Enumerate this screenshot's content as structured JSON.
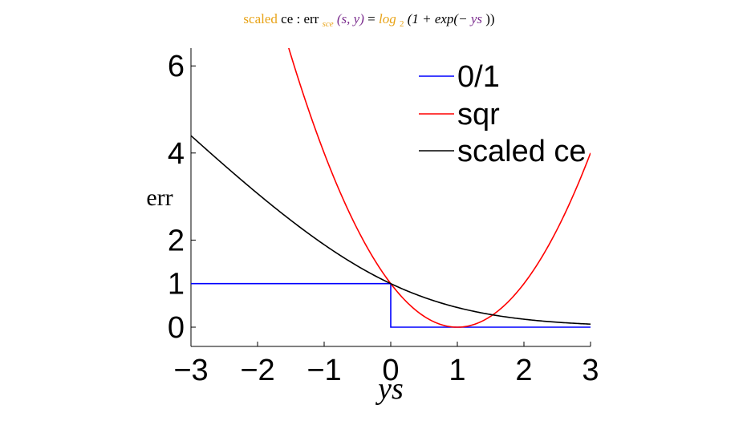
{
  "title": {
    "prefix": "scaled",
    "after_prefix": " ce : err",
    "err_subscript": "sce",
    "args": "(s, y)",
    "equals": " = ",
    "log": "log",
    "log_base": "2",
    "expr_start": "(1 + exp(−",
    "expr_var": "ys",
    "expr_end": "))"
  },
  "colors": {
    "title_orange": "#E8A317",
    "title_purple": "#7B2D8E",
    "zero_one": "#0000FF",
    "sqr": "#FF0000",
    "scaled_ce": "#000000"
  },
  "chart_data": {
    "type": "line",
    "title": "scaled ce : err_sce(s, y) = log_2(1 + exp(−ys))",
    "xlabel": "ys",
    "ylabel": "err",
    "xlim": [
      -3,
      3
    ],
    "ylim": [
      -0.5,
      6.5
    ],
    "x_ticks": [
      -3,
      -2,
      -1,
      0,
      1,
      2,
      3
    ],
    "x_tick_labels": [
      "−3",
      "−2",
      "−1",
      "0",
      "1",
      "2",
      "3"
    ],
    "y_ticks": [
      0,
      1,
      2,
      4,
      6
    ],
    "y_tick_labels": [
      "0",
      "1",
      "2",
      "4",
      "6"
    ],
    "grid": false,
    "legend_position": "top-right",
    "series": [
      {
        "name": "0/1",
        "color": "#0000FF",
        "x": [
          -3,
          0,
          0,
          3
        ],
        "y": [
          1,
          1,
          0,
          0
        ]
      },
      {
        "name": "sqr",
        "color": "#FF0000",
        "function": "(1 - ys)^2",
        "x": [
          -1.6,
          -1.2,
          -0.8,
          -0.4,
          0,
          0.5,
          1,
          1.5,
          2,
          2.5,
          3
        ],
        "y": [
          6.76,
          4.84,
          3.24,
          1.96,
          1,
          0.25,
          0,
          0.25,
          1,
          2.25,
          4
        ]
      },
      {
        "name": "scaled ce",
        "color": "#000000",
        "function": "log2(1 + exp(-ys))",
        "x": [
          -3,
          -2,
          -1,
          0,
          1,
          2,
          3
        ],
        "y": [
          4.39,
          3.08,
          1.89,
          1,
          0.45,
          0.18,
          0.07
        ]
      }
    ]
  }
}
